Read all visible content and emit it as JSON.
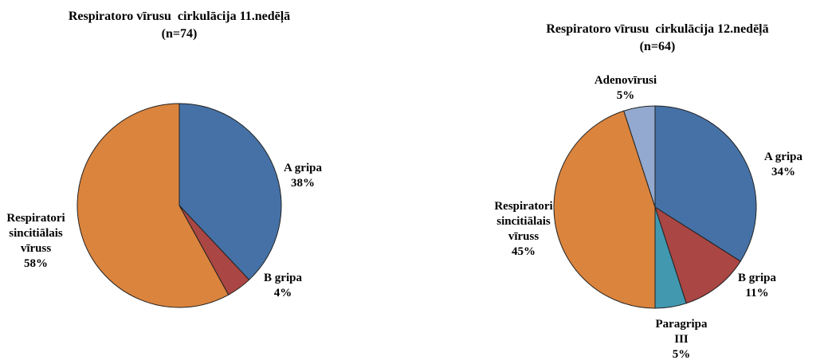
{
  "chart_data": [
    {
      "type": "pie",
      "title": "Respiratoro vīrusu  cirkulācija 11.nedēļā",
      "subtitle": "(n=74)",
      "categories": [
        "A gripa",
        "B gripa",
        "Respiratori sincitiālais vīruss"
      ],
      "values": [
        38,
        4,
        58
      ],
      "value_labels": [
        "38%",
        "4%",
        "58%"
      ],
      "colors": [
        "#4571a6",
        "#aa4643",
        "#db843d"
      ]
    },
    {
      "type": "pie",
      "title": "Respiratoro vīrusu  cirkulācija 12.nedēļā",
      "subtitle": "(n=64)",
      "categories": [
        "A gripa",
        "B gripa",
        "Paragripa III",
        "Respiratori sincitiālais vīruss",
        "Adenovīrusi"
      ],
      "values": [
        34,
        11,
        5,
        45,
        5
      ],
      "value_labels": [
        "34%",
        "11%",
        "5%",
        "45%",
        "5%"
      ],
      "colors": [
        "#4571a6",
        "#aa4643",
        "#4198af",
        "#db843d",
        "#93a9cf"
      ]
    }
  ]
}
